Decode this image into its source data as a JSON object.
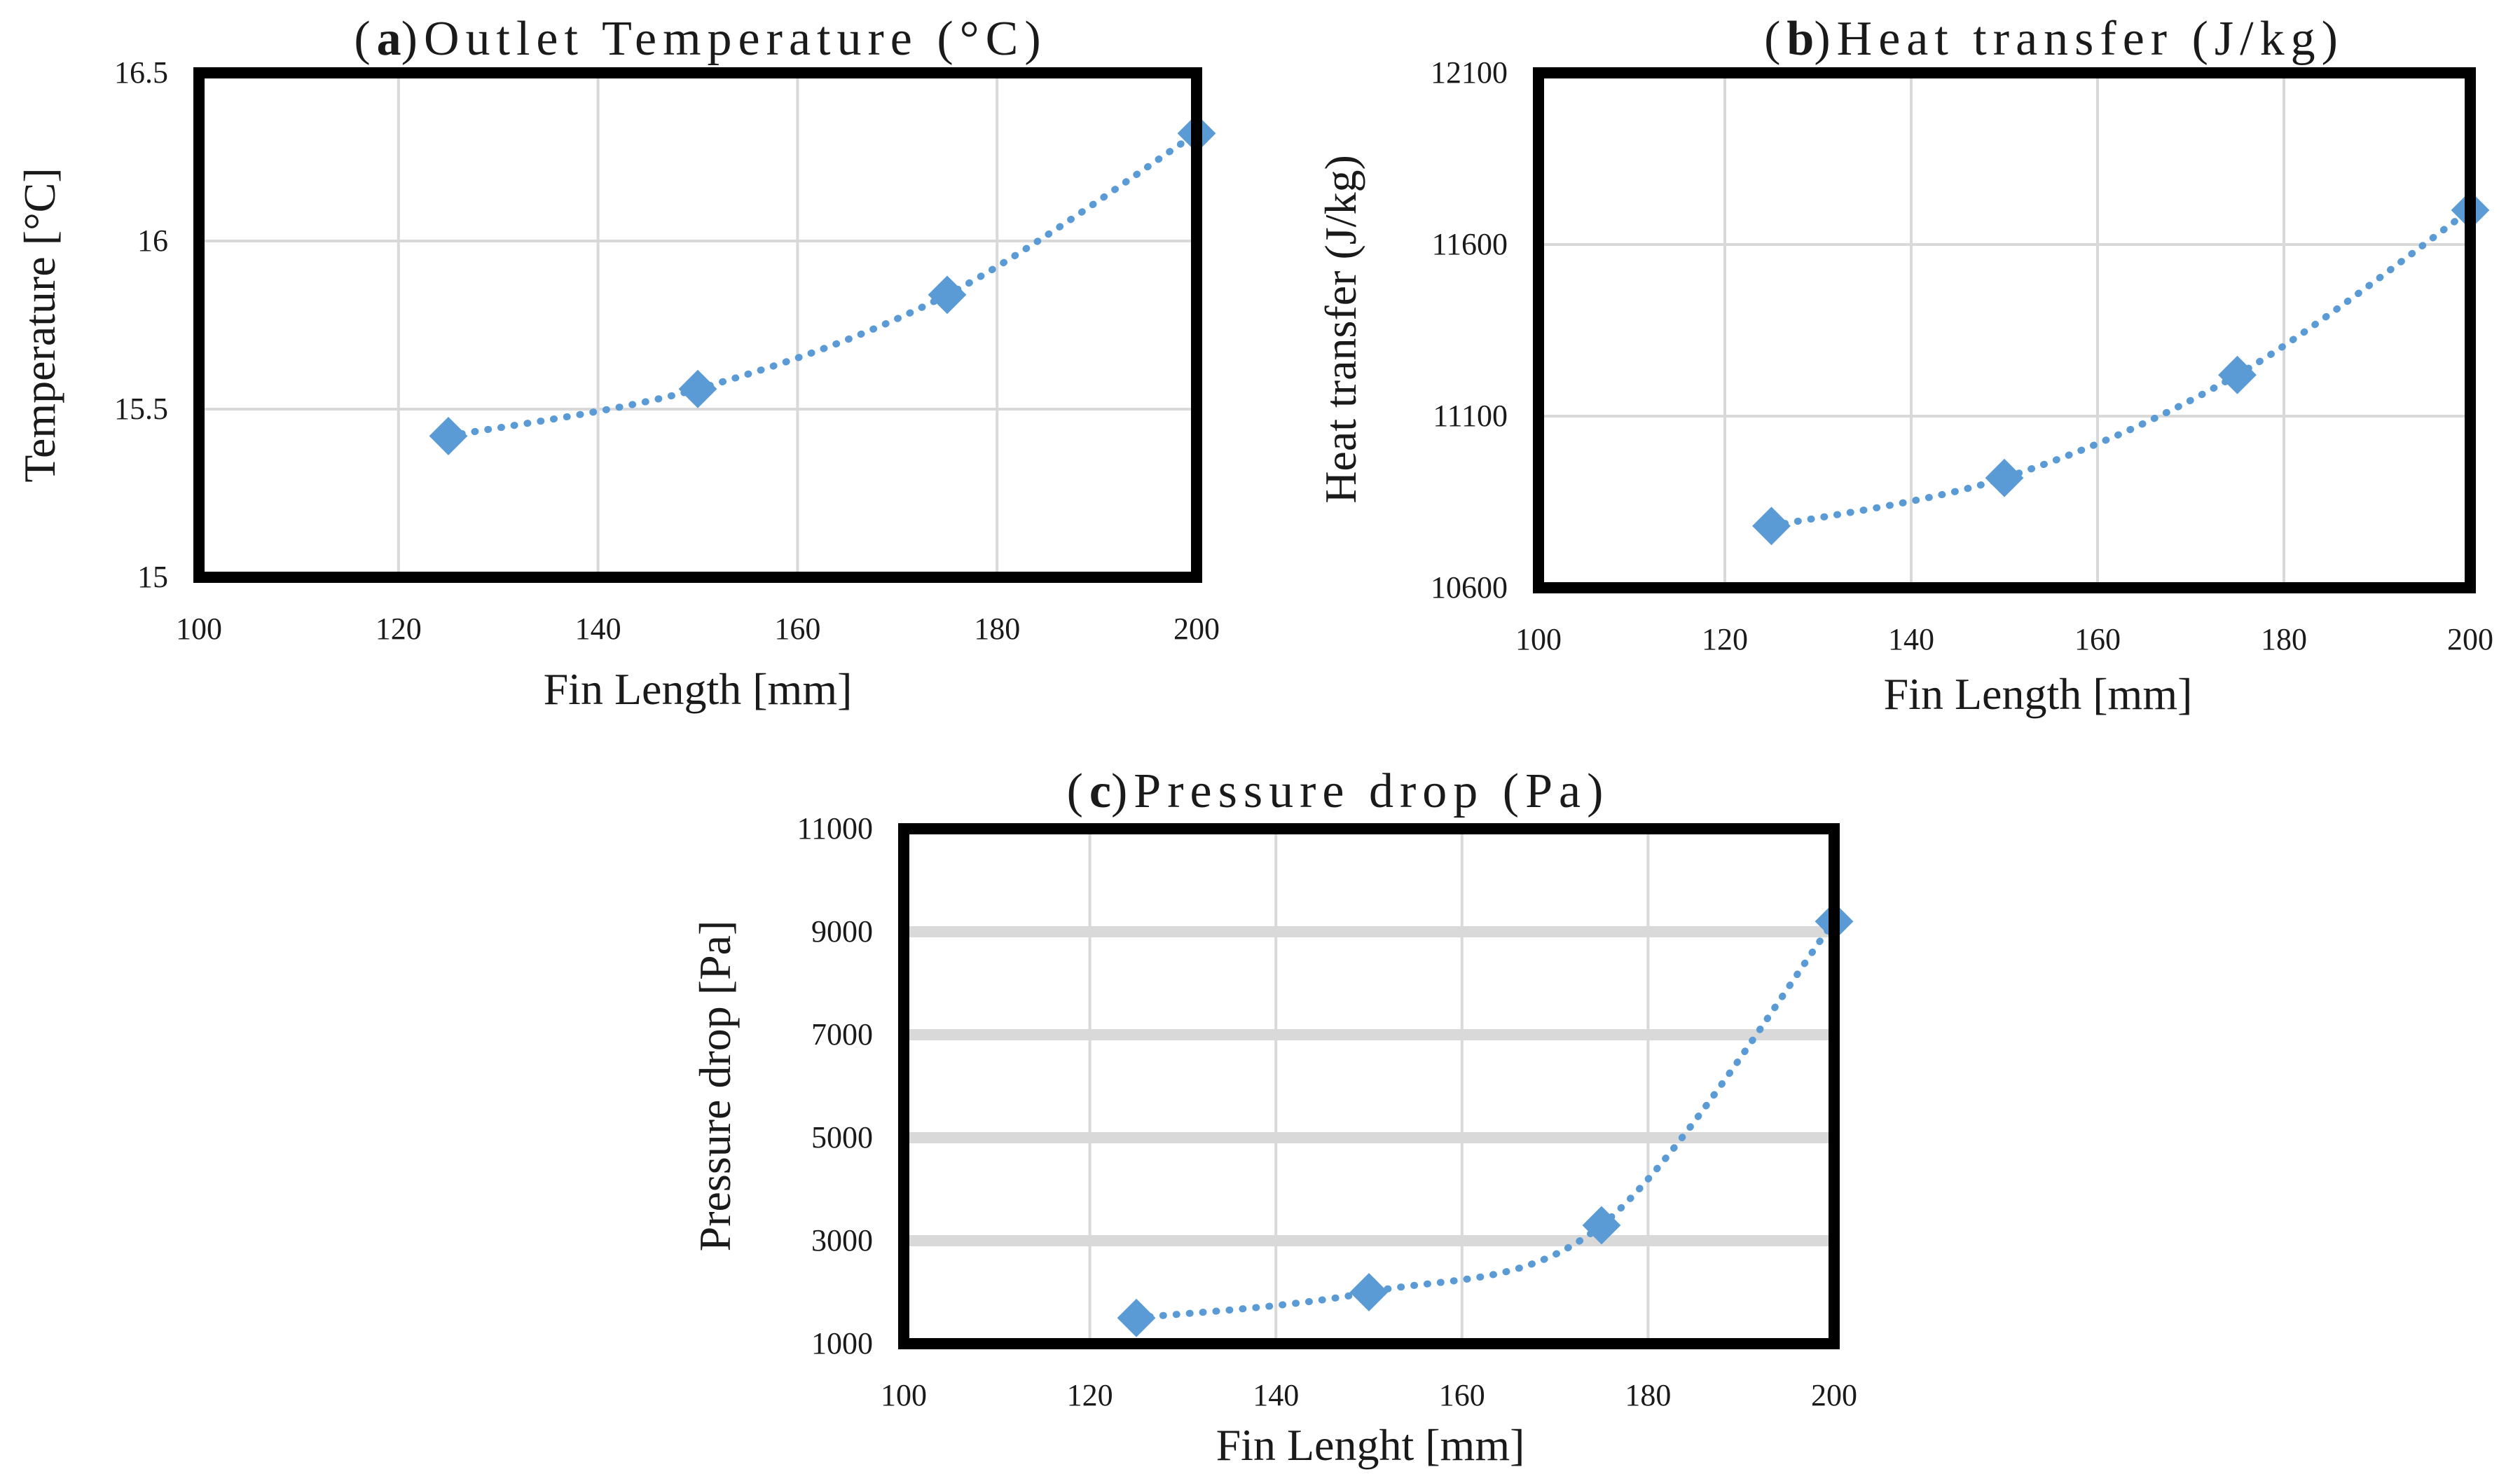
{
  "chart_data": [
    {
      "type": "line",
      "panel_letter": "a",
      "title": "Outlet Temperature (°C)",
      "xlabel": "Fin Length [mm]",
      "ylabel": "Temperature [°C]",
      "xlim": [
        100,
        200
      ],
      "ylim": [
        15,
        16.5
      ],
      "xticks": [
        100,
        120,
        140,
        160,
        180,
        200
      ],
      "yticks": [
        15,
        15.5,
        16,
        16.5
      ],
      "xtick_labels": [
        "100",
        "120",
        "140",
        "160",
        "180",
        "200"
      ],
      "ytick_labels": [
        "15",
        "15.5",
        "16",
        "16.5"
      ],
      "x": [
        125,
        150,
        175,
        200
      ],
      "y": [
        15.42,
        15.56,
        15.84,
        16.32
      ],
      "marker": "diamond",
      "line_style": "dotted",
      "series_color": "#5b9bd5",
      "grid": "both"
    },
    {
      "type": "line",
      "panel_letter": "b",
      "title": "Heat transfer (J/kg)",
      "xlabel": "Fin Length [mm]",
      "ylabel": "Heat transfer (J/kg)",
      "xlim": [
        100,
        200
      ],
      "ylim": [
        10600,
        12100
      ],
      "xticks": [
        100,
        120,
        140,
        160,
        180,
        200
      ],
      "yticks": [
        10600,
        11100,
        11600,
        12100
      ],
      "xtick_labels": [
        "100",
        "120",
        "140",
        "160",
        "180",
        "200"
      ],
      "ytick_labels": [
        "10600",
        "11100",
        "11600",
        "12100"
      ],
      "x": [
        125,
        150,
        175,
        200
      ],
      "y": [
        10780,
        10920,
        11220,
        11700
      ],
      "marker": "diamond",
      "line_style": "dotted",
      "series_color": "#5b9bd5",
      "grid": "both"
    },
    {
      "type": "line",
      "panel_letter": "c",
      "title": "Pressure drop (Pa)",
      "xlabel": "Fin Lenght [mm]",
      "ylabel": "Pressure drop [Pa]",
      "xlim": [
        100,
        200
      ],
      "ylim": [
        1000,
        11000
      ],
      "xticks": [
        100,
        120,
        140,
        160,
        180,
        200
      ],
      "yticks": [
        1000,
        3000,
        5000,
        7000,
        9000,
        11000
      ],
      "xtick_labels": [
        "100",
        "120",
        "140",
        "160",
        "180",
        "200"
      ],
      "ytick_labels": [
        "1000",
        "3000",
        "5000",
        "7000",
        "9000",
        "11000"
      ],
      "x": [
        125,
        150,
        175,
        200
      ],
      "y": [
        1500,
        2000,
        3300,
        9200
      ],
      "marker": "diamond",
      "line_style": "dotted",
      "series_color": "#5b9bd5",
      "grid": "both"
    }
  ]
}
